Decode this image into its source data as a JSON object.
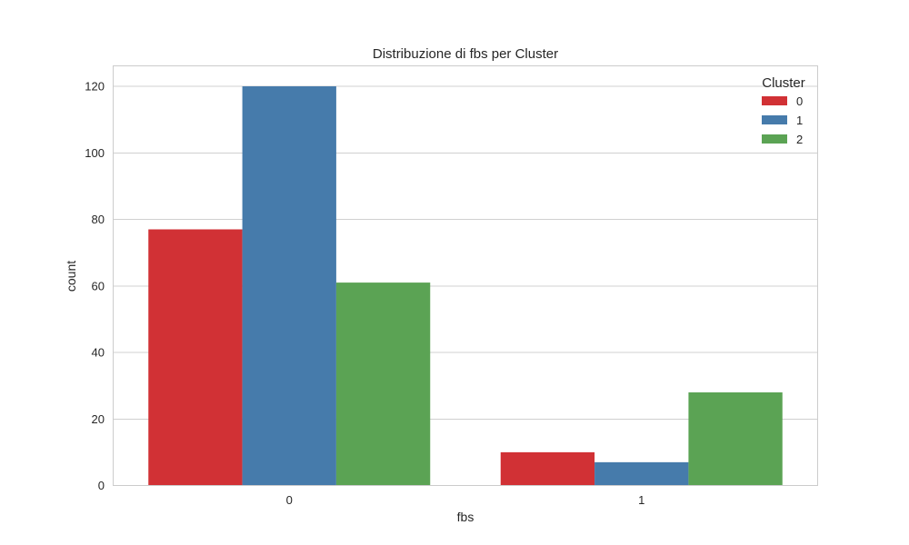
{
  "chart_data": {
    "type": "bar",
    "title": "Distribuzione di fbs per Cluster",
    "xlabel": "fbs",
    "ylabel": "count",
    "categories": [
      "0",
      "1"
    ],
    "series": [
      {
        "name": "0",
        "values": [
          77,
          10
        ],
        "color": "#d13135"
      },
      {
        "name": "1",
        "values": [
          120,
          7
        ],
        "color": "#467bab"
      },
      {
        "name": "2",
        "values": [
          61,
          28
        ],
        "color": "#5ba354"
      }
    ],
    "ylim": [
      0,
      126.15
    ],
    "yticks": [
      0,
      20,
      40,
      60,
      80,
      100,
      120
    ],
    "grid": true,
    "legend": {
      "title": "Cluster",
      "position": "top-right"
    }
  }
}
